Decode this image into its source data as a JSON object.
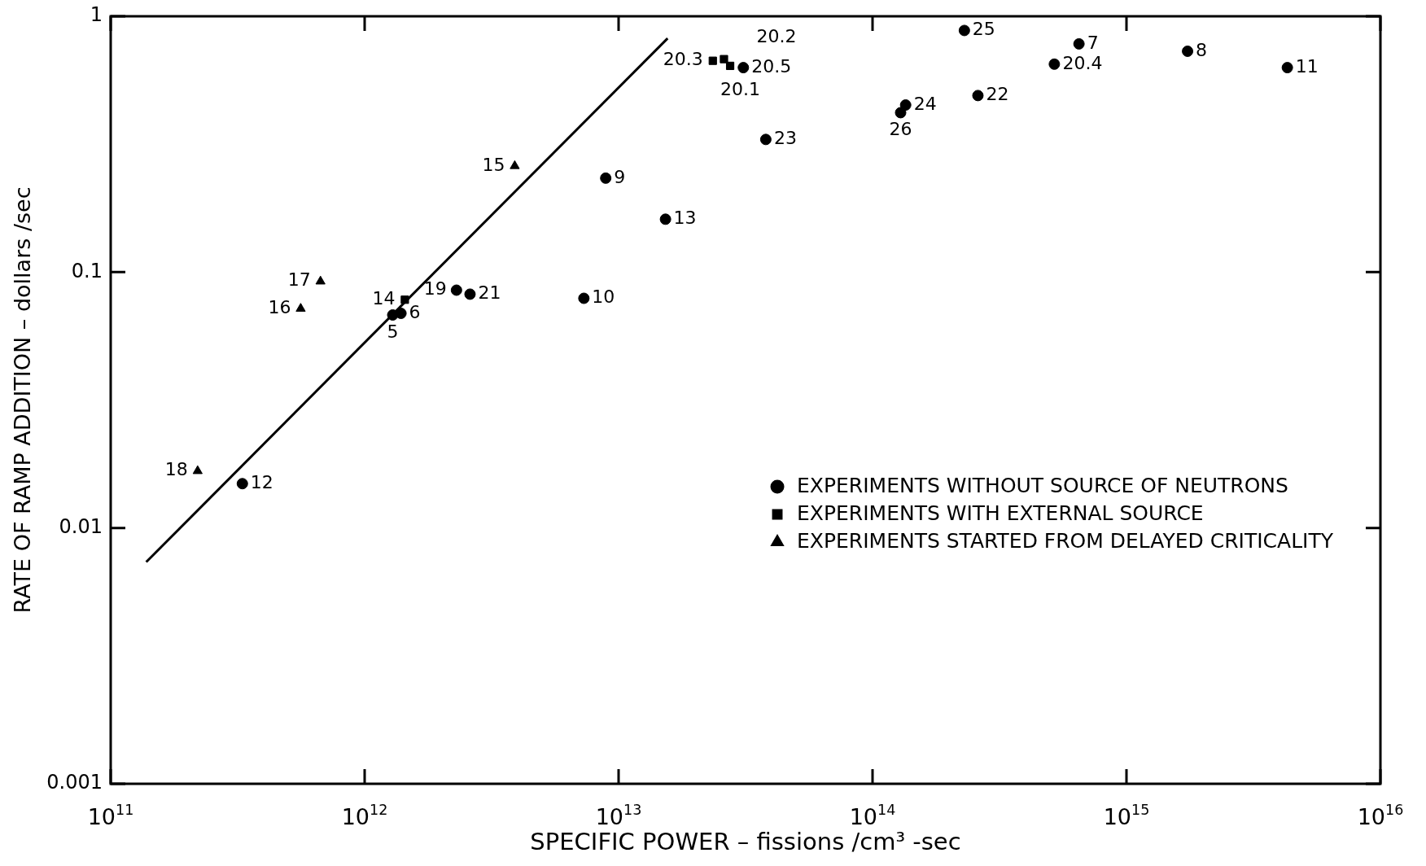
{
  "chart_data": {
    "type": "scatter",
    "xlabel": "SPECIFIC POWER – fissions /cm³ -sec",
    "ylabel": "RATE OF RAMP ADDITION – dollars /sec",
    "log": "xy",
    "grid": false,
    "legend": "bottom right",
    "xlim": [
      100000000000.0,
      1e+16
    ],
    "ylim": [
      0.001,
      1
    ],
    "xticks": [
      {
        "value": 100000000000.0,
        "label": "10$^{11}$"
      },
      {
        "value": 1000000000000.0,
        "label": "10$^{12}$"
      },
      {
        "value": 10000000000000.0,
        "label": "10$^{13}$"
      },
      {
        "value": 100000000000000.0,
        "label": "10$^{14}$"
      },
      {
        "value": 1000000000000000.0,
        "label": "10$^{15}$"
      },
      {
        "value": 1e+16,
        "label": "10$^{16}$"
      }
    ],
    "yticks": [
      0.001,
      0.01,
      0.1,
      1
    ],
    "series": [
      {
        "name": "EXPERIMENTS WITHOUT SOURCE OF NEUTRONS",
        "color": "#000000",
        "marker": "circle",
        "x": [
          1290000000000.0,
          1390000000000.0,
          2300000000000.0,
          2600000000000.0,
          7300000000000.0,
          8900000000000.0,
          15300000000000.0,
          330000000000.0,
          31000000000000.0,
          38000000000000.0,
          129000000000000.0,
          135000000000000.0,
          230000000000000.0,
          260000000000000.0,
          520000000000000.0,
          650000000000000.0,
          1740000000000000.0,
          4300000000000000.0
        ],
        "values": [
          0.068,
          0.069,
          0.085,
          0.082,
          0.079,
          0.233,
          0.161,
          0.0149,
          0.63,
          0.33,
          0.42,
          0.45,
          0.88,
          0.49,
          0.65,
          0.78,
          0.73,
          0.63
        ]
      },
      {
        "name": "EXPERIMENTS WITH EXTERNAL SOURCE",
        "color": "#000000",
        "marker": "square",
        "x": [
          1440000000000.0,
          23500000000000.0,
          26000000000000.0,
          27500000000000.0
        ],
        "values": [
          0.078,
          0.67,
          0.68,
          0.64
        ]
      },
      {
        "name": "EXPERIMENTS STARTED FROM DELAYED CRITICALITY",
        "color": "#000000",
        "marker": "triangle",
        "x": [
          3900000000000.0,
          670000000000.0,
          560000000000.0,
          220000000000.0
        ],
        "values": [
          0.26,
          0.092,
          0.072,
          0.0167
        ]
      },
      {
        "type": "line",
        "color": "#000000",
        "marker": "none",
        "line_style": "solid",
        "x": [
          138000000000.0,
          15600000000000.0
        ],
        "values": [
          0.00736,
          0.82
        ]
      }
    ],
    "annotations": [
      {
        "text": "5",
        "x": 1290000000000.0,
        "y": 0.068
      },
      {
        "text": "6",
        "x": 1390000000000.0,
        "y": 0.069
      },
      {
        "text": "19",
        "x": 2300000000000.0,
        "y": 0.085
      },
      {
        "text": "21",
        "x": 2600000000000.0,
        "y": 0.082
      },
      {
        "text": "10",
        "x": 7300000000000.0,
        "y": 0.079
      },
      {
        "text": "9",
        "x": 8900000000000.0,
        "y": 0.233
      },
      {
        "text": "13",
        "x": 15300000000000.0,
        "y": 0.161
      },
      {
        "text": "12",
        "x": 330000000000.0,
        "y": 0.0149
      },
      {
        "text": "20.5",
        "x": 31000000000000.0,
        "y": 0.63
      },
      {
        "text": "23",
        "x": 38000000000000.0,
        "y": 0.33
      },
      {
        "text": "26",
        "x": 129000000000000.0,
        "y": 0.42
      },
      {
        "text": "24",
        "x": 135000000000000.0,
        "y": 0.45
      },
      {
        "text": "25",
        "x": 230000000000000.0,
        "y": 0.88
      },
      {
        "text": "22",
        "x": 260000000000000.0,
        "y": 0.49
      },
      {
        "text": "20.4",
        "x": 520000000000000.0,
        "y": 0.65
      },
      {
        "text": "7",
        "x": 650000000000000.0,
        "y": 0.78
      },
      {
        "text": "8",
        "x": 1740000000000000.0,
        "y": 0.73
      },
      {
        "text": "11",
        "x": 4300000000000000.0,
        "y": 0.63
      },
      {
        "text": "14",
        "x": 1440000000000.0,
        "y": 0.078
      },
      {
        "text": "20.3",
        "x": 23500000000000.0,
        "y": 0.67
      },
      {
        "text": "20.2",
        "x": 26000000000000.0,
        "y": 0.68
      },
      {
        "text": "20.1",
        "x": 27500000000000.0,
        "y": 0.64
      },
      {
        "text": "15",
        "x": 3900000000000.0,
        "y": 0.26
      },
      {
        "text": "17",
        "x": 670000000000.0,
        "y": 0.092
      },
      {
        "text": "16",
        "x": 560000000000.0,
        "y": 0.072
      },
      {
        "text": "18",
        "x": 220000000000.0,
        "y": 0.0167
      }
    ]
  }
}
